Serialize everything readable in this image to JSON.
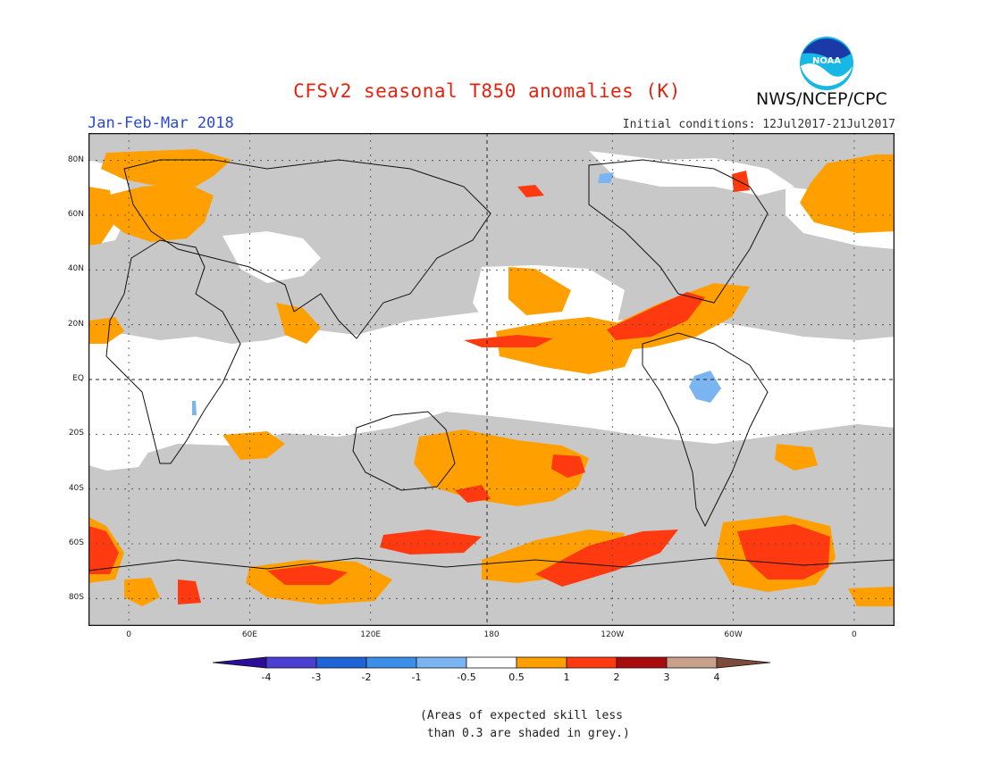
{
  "header": {
    "title": "CFSv2 seasonal T850 anomalies (K)",
    "season": "Jan-Feb-Mar 2018",
    "initial_conditions": "Initial conditions: 12Jul2017-21Jul2017",
    "agency": "NWS/NCEP/CPC",
    "logo_text": "NOAA"
  },
  "axes": {
    "latitudes": [
      {
        "label": "80N",
        "lat": 80
      },
      {
        "label": "60N",
        "lat": 60
      },
      {
        "label": "40N",
        "lat": 40
      },
      {
        "label": "20N",
        "lat": 20
      },
      {
        "label": "EQ",
        "lat": 0
      },
      {
        "label": "20S",
        "lat": -20
      },
      {
        "label": "40S",
        "lat": -40
      },
      {
        "label": "60S",
        "lat": -60
      },
      {
        "label": "80S",
        "lat": -80
      }
    ],
    "longitudes": [
      {
        "label": "0",
        "lon": 0
      },
      {
        "label": "60E",
        "lon": 60
      },
      {
        "label": "120E",
        "lon": 120
      },
      {
        "label": "180",
        "lon": 180
      },
      {
        "label": "120W",
        "lon": 240
      },
      {
        "label": "60W",
        "lon": 300
      },
      {
        "label": "0",
        "lon": 360
      }
    ],
    "lon_range": [
      -20,
      380
    ],
    "lat_range": [
      -90,
      90
    ]
  },
  "colorbar": {
    "labels": [
      "-4",
      "-3",
      "-2",
      "-1",
      "-0.5",
      "0.5",
      "1",
      "2",
      "3",
      "4"
    ],
    "colors": [
      "#2b0d9c",
      "#4a3fd0",
      "#1e64d6",
      "#3c8ee8",
      "#7ab5f2",
      "#ffffff",
      "#ffa000",
      "#ff3a10",
      "#a80c0c",
      "#c9a08a",
      "#7d4a3c"
    ]
  },
  "colors": {
    "skill_grey": "#c8c8c8",
    "no_signal": "#ffffff",
    "warm1": "#ffa000",
    "warm2": "#ff3a10",
    "cool1": "#7ab5f2"
  },
  "footnote": {
    "line1": "(Areas of expected skill less",
    "line2": " than 0.3 are shaded in grey.)"
  }
}
